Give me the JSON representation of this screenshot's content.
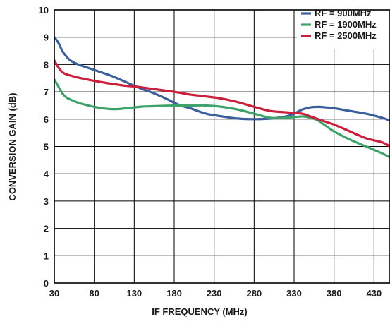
{
  "chart_data": {
    "type": "line",
    "title": "",
    "xlabel": "IF FREQUENCY (MHz)",
    "ylabel": "CONVERSION GAIN (dB)",
    "xlim": [
      30,
      450
    ],
    "ylim": [
      0,
      10
    ],
    "x_ticks": [
      30,
      80,
      130,
      180,
      230,
      280,
      330,
      380,
      430
    ],
    "y_ticks": [
      0,
      1,
      2,
      3,
      4,
      5,
      6,
      7,
      8,
      9,
      10
    ],
    "grid": true,
    "legend_position": "top-right",
    "series": [
      {
        "name": "RF = 900MHz",
        "color": "#3a5f9c",
        "x": [
          30,
          35,
          40,
          45,
          50,
          60,
          70,
          80,
          90,
          100,
          110,
          120,
          130,
          140,
          150,
          160,
          170,
          180,
          190,
          200,
          220,
          240,
          260,
          280,
          300,
          320,
          330,
          340,
          350,
          360,
          370,
          380,
          400,
          420,
          440,
          450
        ],
        "y": [
          9.0,
          8.8,
          8.5,
          8.3,
          8.15,
          8.0,
          7.9,
          7.8,
          7.7,
          7.6,
          7.48,
          7.35,
          7.22,
          7.1,
          7.0,
          6.88,
          6.75,
          6.6,
          6.48,
          6.4,
          6.2,
          6.1,
          6.02,
          6.0,
          6.02,
          6.1,
          6.2,
          6.35,
          6.43,
          6.45,
          6.43,
          6.4,
          6.3,
          6.2,
          6.05,
          5.95
        ]
      },
      {
        "name": "RF = 1900MHz",
        "color": "#3ea36a",
        "x": [
          30,
          35,
          40,
          45,
          50,
          60,
          70,
          80,
          90,
          100,
          110,
          120,
          130,
          140,
          150,
          160,
          180,
          200,
          220,
          240,
          260,
          280,
          300,
          320,
          340,
          350,
          360,
          370,
          380,
          400,
          420,
          440,
          450
        ],
        "y": [
          7.45,
          7.2,
          6.95,
          6.8,
          6.72,
          6.6,
          6.52,
          6.45,
          6.4,
          6.37,
          6.37,
          6.4,
          6.43,
          6.46,
          6.47,
          6.48,
          6.5,
          6.5,
          6.5,
          6.45,
          6.35,
          6.2,
          6.05,
          6.05,
          6.1,
          6.05,
          5.95,
          5.75,
          5.55,
          5.25,
          5.0,
          4.75,
          4.6
        ]
      },
      {
        "name": "RF = 2500MHz",
        "color": "#cc1f3c",
        "x": [
          30,
          35,
          40,
          45,
          50,
          60,
          70,
          80,
          90,
          100,
          110,
          120,
          130,
          140,
          160,
          180,
          200,
          220,
          240,
          260,
          280,
          300,
          320,
          340,
          350,
          360,
          370,
          380,
          400,
          420,
          440,
          450
        ],
        "y": [
          8.15,
          7.9,
          7.72,
          7.64,
          7.6,
          7.52,
          7.46,
          7.4,
          7.35,
          7.3,
          7.26,
          7.22,
          7.2,
          7.16,
          7.08,
          7.0,
          6.9,
          6.83,
          6.75,
          6.62,
          6.45,
          6.3,
          6.25,
          6.2,
          6.1,
          6.0,
          5.9,
          5.8,
          5.55,
          5.3,
          5.15,
          5.0
        ]
      }
    ]
  }
}
